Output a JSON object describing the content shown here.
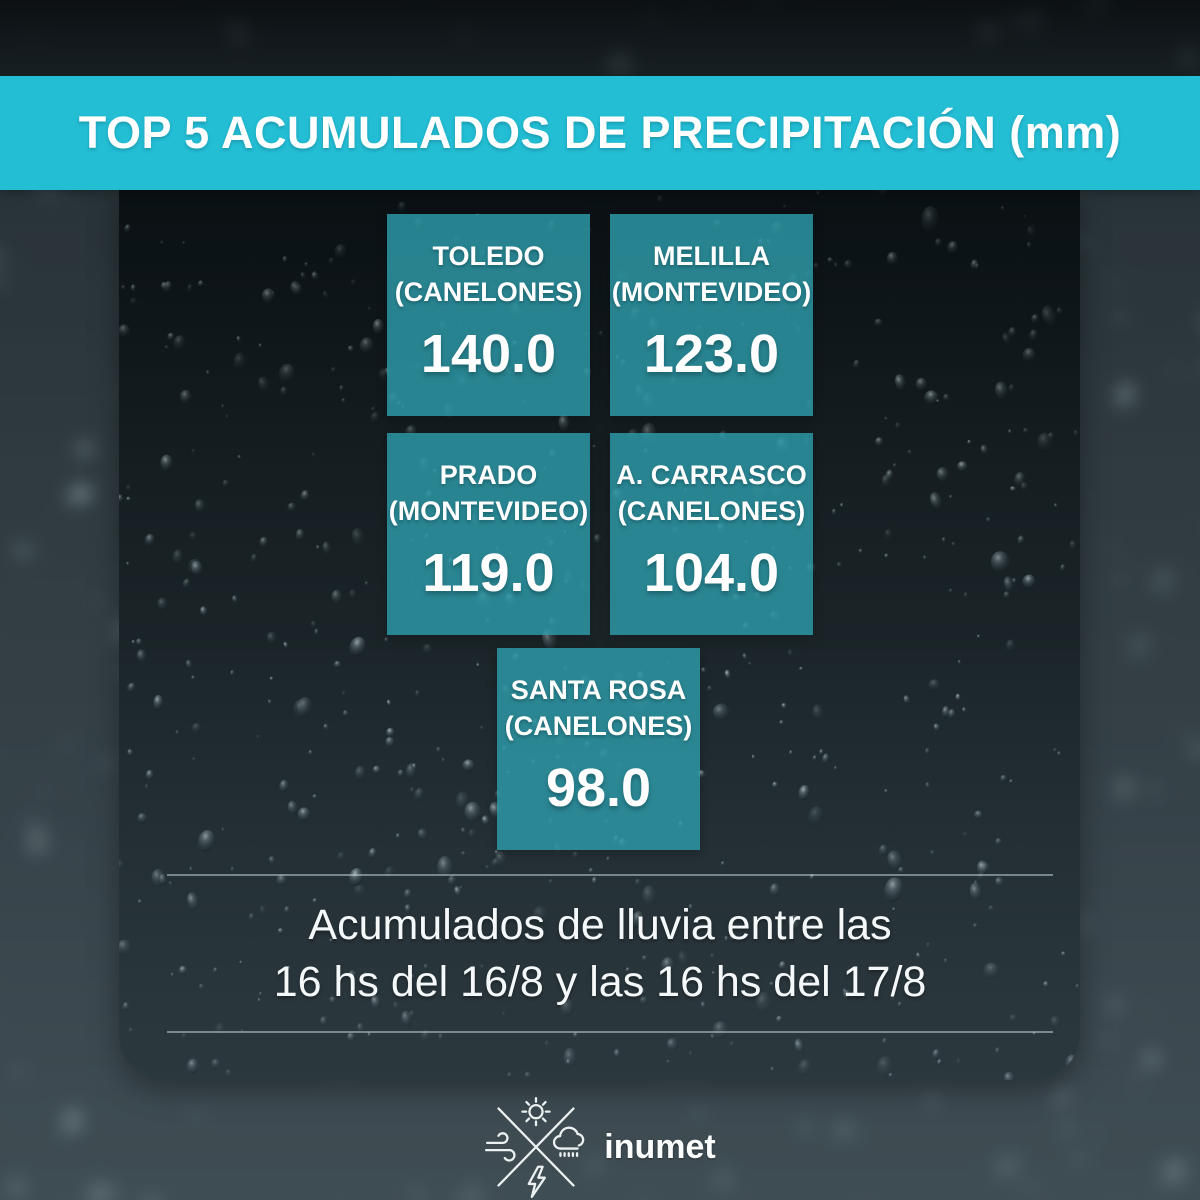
{
  "header": {
    "title": "TOP 5 ACUMULADOS DE PRECIPITACIÓN (mm)"
  },
  "cards": [
    {
      "name": "TOLEDO",
      "region": "(CANELONES)",
      "value": "140.0"
    },
    {
      "name": "MELILLA",
      "region": "(MONTEVIDEO)",
      "value": "123.0"
    },
    {
      "name": "PRADO",
      "region": "(MONTEVIDEO)",
      "value": "119.0"
    },
    {
      "name": "A. CARRASCO",
      "region": "(CANELONES)",
      "value": "104.0"
    },
    {
      "name": "SANTA ROSA",
      "region": "(CANELONES)",
      "value": "98.0"
    }
  ],
  "caption": {
    "line1": "Acumulados de lluvia entre las",
    "line2": "16 hs del 16/8 y las 16 hs del 17/8"
  },
  "footer": {
    "brand": "inumet",
    "emblem_icons": [
      "sun-icon",
      "wind-icon",
      "rain-cloud-icon",
      "lightning-icon"
    ]
  },
  "colors": {
    "accent_teal": "#23bdd4",
    "card_teal": "#2d99a7",
    "text": "#ffffff",
    "background_dark": "#1d262a"
  },
  "chart_data": {
    "type": "table",
    "title": "TOP 5 ACUMULADOS DE PRECIPITACIÓN (mm)",
    "unit": "mm",
    "categories": [
      "TOLEDO (CANELONES)",
      "MELILLA (MONTEVIDEO)",
      "PRADO (MONTEVIDEO)",
      "A. CARRASCO (CANELONES)",
      "SANTA ROSA (CANELONES)"
    ],
    "values": [
      140.0,
      123.0,
      119.0,
      104.0,
      98.0
    ],
    "note": "Acumulados de lluvia entre las 16 hs del 16/8 y las 16 hs del 17/8"
  }
}
